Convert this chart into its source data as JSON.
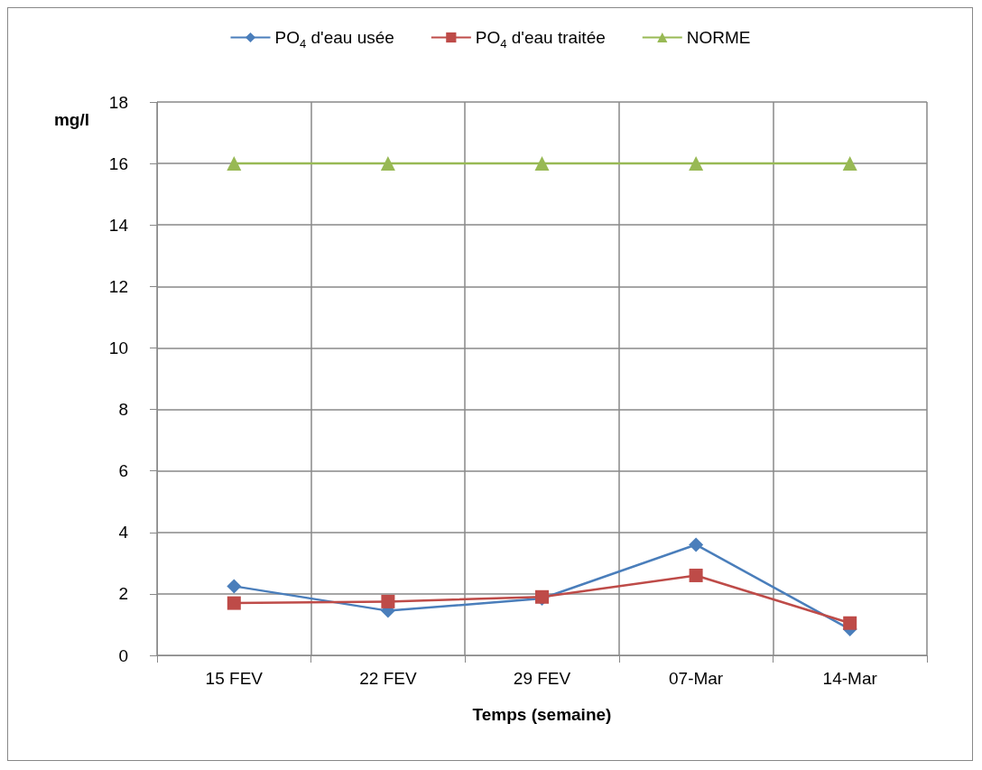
{
  "chart_data": {
    "type": "line",
    "xlabel": "Temps (semaine)",
    "ylabel": "mg/l",
    "categories": [
      "15 FEV",
      "22 FEV",
      "29 FEV",
      "07-Mar",
      "14-Mar"
    ],
    "series": [
      {
        "name": "PO$_{4}$ d'eau usée",
        "color": "#4a7ebb",
        "marker": "diamond",
        "values": [
          2.25,
          1.45,
          1.85,
          3.6,
          0.85
        ]
      },
      {
        "name": "PO$_{4}$ d'eau traitée",
        "color": "#be4b48",
        "marker": "square",
        "values": [
          1.7,
          1.75,
          1.9,
          2.6,
          1.05
        ]
      },
      {
        "name": "NORME",
        "color": "#98b954",
        "marker": "triangle",
        "values": [
          16,
          16,
          16,
          16,
          16
        ]
      }
    ],
    "ylim": [
      0,
      18
    ],
    "yticks": [
      0,
      2,
      4,
      6,
      8,
      10,
      12,
      14,
      16,
      18
    ],
    "grid": true,
    "legend": "top"
  }
}
